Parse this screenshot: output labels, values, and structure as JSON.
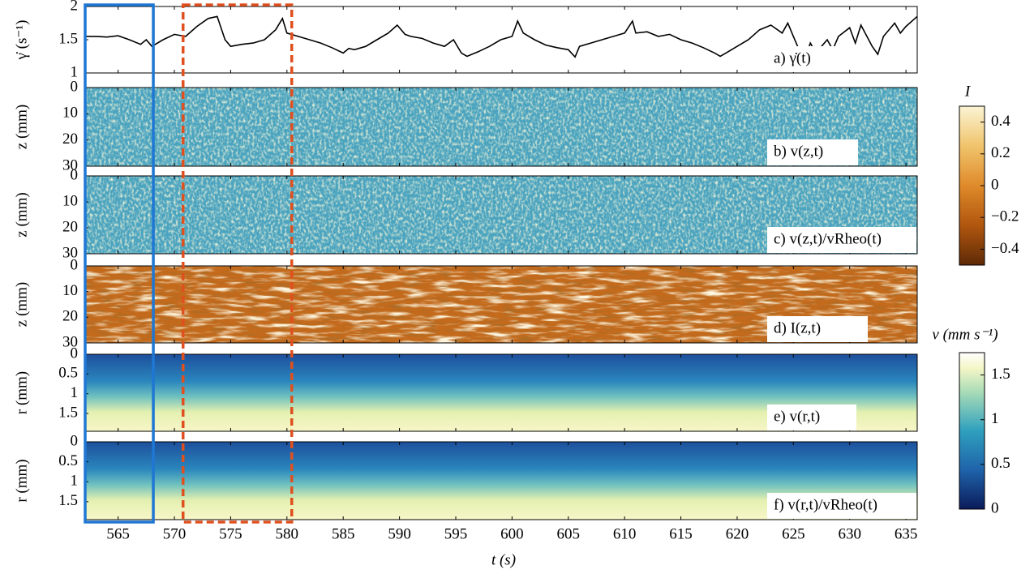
{
  "chart_data": [
    {
      "type": "line",
      "ylabel": "γ̇ (s⁻¹)",
      "annotation": "a) γ̇(t)",
      "color": "#000000",
      "ylim": [
        1,
        2
      ],
      "yticks": [
        1,
        1.5,
        2
      ],
      "x": [
        562,
        563,
        564,
        565,
        566,
        567,
        567.5,
        568,
        569,
        570,
        571,
        572,
        573,
        573.8,
        574.5,
        575,
        576,
        577,
        578,
        579,
        579.6,
        580,
        581,
        582,
        583,
        584,
        585,
        585.5,
        586,
        587,
        588,
        589,
        589.8,
        590.5,
        591,
        592,
        593,
        594,
        594.8,
        595.5,
        596,
        597,
        598,
        599,
        600,
        600.5,
        601,
        602,
        603,
        604,
        605,
        605.6,
        606,
        607,
        608,
        609,
        610,
        610.7,
        611,
        612,
        613,
        614,
        615,
        616,
        617,
        618,
        618.5,
        619,
        620,
        621,
        622,
        623,
        624,
        624.5,
        625,
        625.5,
        626,
        626.5,
        627,
        628,
        628.5,
        629,
        630,
        630.5,
        631,
        632,
        632.5,
        633,
        634,
        634.5,
        635,
        636
      ],
      "values": [
        1.55,
        1.55,
        1.54,
        1.56,
        1.5,
        1.43,
        1.5,
        1.4,
        1.5,
        1.58,
        1.55,
        1.7,
        1.82,
        1.85,
        1.5,
        1.4,
        1.43,
        1.45,
        1.5,
        1.65,
        1.82,
        1.6,
        1.55,
        1.5,
        1.45,
        1.38,
        1.3,
        1.37,
        1.35,
        1.4,
        1.5,
        1.6,
        1.72,
        1.58,
        1.55,
        1.52,
        1.45,
        1.4,
        1.5,
        1.3,
        1.25,
        1.32,
        1.4,
        1.5,
        1.55,
        1.78,
        1.6,
        1.5,
        1.42,
        1.38,
        1.35,
        1.24,
        1.4,
        1.45,
        1.5,
        1.55,
        1.6,
        1.78,
        1.6,
        1.62,
        1.55,
        1.58,
        1.5,
        1.45,
        1.38,
        1.3,
        1.25,
        1.3,
        1.4,
        1.5,
        1.65,
        1.72,
        1.6,
        1.75,
        1.55,
        1.35,
        1.2,
        1.45,
        1.3,
        1.5,
        1.35,
        1.55,
        1.68,
        1.45,
        1.72,
        1.4,
        1.28,
        1.55,
        1.75,
        1.6,
        1.7,
        1.85
      ]
    },
    {
      "type": "heatmap",
      "ylabel": "z (mm)",
      "annotation": "b) v(z,t)",
      "ylim": [
        0,
        30
      ],
      "yticks": [
        0,
        10,
        20,
        30
      ],
      "colormap": "velocity-z"
    },
    {
      "type": "heatmap",
      "ylabel": "z (mm)",
      "annotation": "c) v(z,t)/vRheo(t)",
      "ylim": [
        0,
        30
      ],
      "yticks": [
        0,
        10,
        20,
        30
      ],
      "colormap": "velocity-z"
    },
    {
      "type": "heatmap",
      "ylabel": "z (mm)",
      "annotation": "d) I(z,t)",
      "ylim": [
        0,
        30
      ],
      "yticks": [
        0,
        10,
        20,
        30
      ],
      "colormap": "intensity"
    },
    {
      "type": "heatmap",
      "ylabel": "r (mm)",
      "annotation": "e) v(r,t)",
      "ylim": [
        0,
        1.95
      ],
      "yticks": [
        0,
        0.5,
        1,
        1.5
      ],
      "colormap": "velocity-r"
    },
    {
      "type": "heatmap",
      "ylabel": "r (mm)",
      "annotation": "f) v(r,t)/vRheo(t)",
      "ylim": [
        0,
        1.95
      ],
      "yticks": [
        0,
        0.5,
        1,
        1.5
      ],
      "colormap": "velocity-r"
    },
    {
      "type": "colorbar",
      "label": "I",
      "clim": [
        -0.5,
        0.5
      ],
      "ticks": [
        0.4,
        0.2,
        0,
        {
          "value": -0.2,
          "label": "−0.2"
        },
        {
          "value": -0.4,
          "label": "−0.4"
        }
      ]
    },
    {
      "type": "colorbar",
      "label": "v (mm s⁻¹)",
      "clim": [
        0,
        1.75
      ],
      "ticks": [
        0,
        0.5,
        1,
        1.5
      ]
    }
  ],
  "x_axis": {
    "label": "t (s)",
    "xlim": [
      562,
      636
    ],
    "xticks": [
      565,
      570,
      575,
      580,
      585,
      590,
      595,
      600,
      605,
      610,
      615,
      620,
      625,
      630,
      635
    ]
  },
  "highlights": [
    {
      "xlim": [
        562,
        568.2
      ],
      "color": "#1f77d4"
    },
    {
      "xlim": [
        570.7,
        580.5
      ],
      "color": "#e0501e"
    }
  ]
}
